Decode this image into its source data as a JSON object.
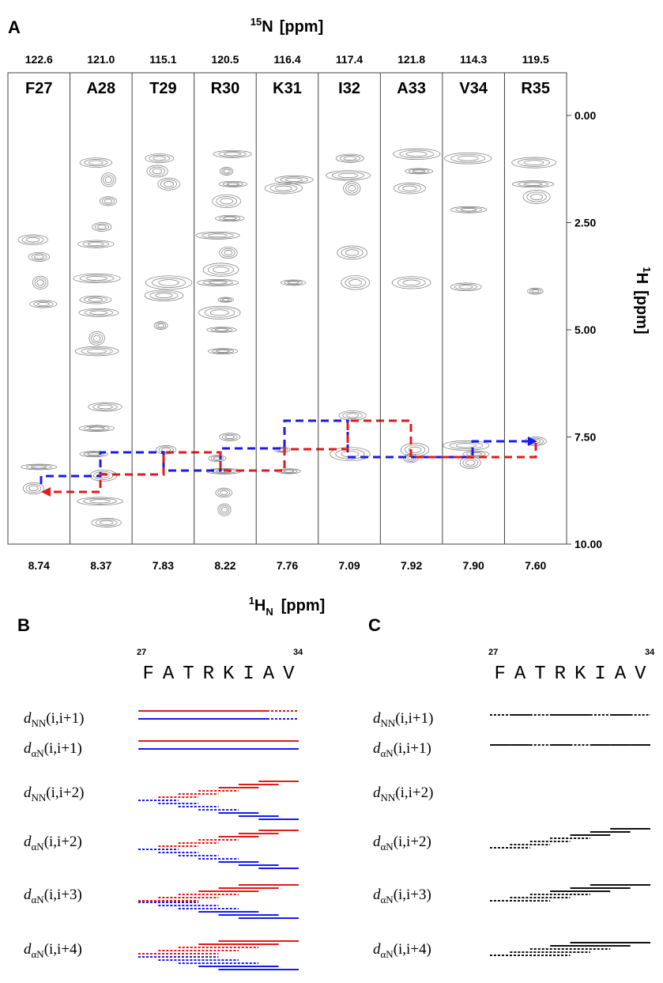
{
  "panel_a": {
    "label": "A",
    "top_axis_title": {
      "sup": "15",
      "text": "N",
      "unit": "[ppm]"
    },
    "strips": [
      {
        "n_ppm": "122.6",
        "residue": "F27",
        "h_ppm": "8.74"
      },
      {
        "n_ppm": "121.0",
        "residue": "A28",
        "h_ppm": "8.37"
      },
      {
        "n_ppm": "115.1",
        "residue": "T29",
        "h_ppm": "7.83"
      },
      {
        "n_ppm": "120.5",
        "residue": "R30",
        "h_ppm": "8.22"
      },
      {
        "n_ppm": "116.4",
        "residue": "K31",
        "h_ppm": "7.76"
      },
      {
        "n_ppm": "117.4",
        "residue": "I32",
        "h_ppm": "7.09"
      },
      {
        "n_ppm": "121.8",
        "residue": "A33",
        "h_ppm": "7.92"
      },
      {
        "n_ppm": "114.3",
        "residue": "V34",
        "h_ppm": "7.90"
      },
      {
        "n_ppm": "119.5",
        "residue": "R35",
        "h_ppm": "7.60"
      }
    ],
    "y_axis": {
      "title": {
        "sup": "1",
        "text": "H",
        "unit": "[ppm]"
      },
      "ticks": [
        {
          "value": 0,
          "label": "0.00"
        },
        {
          "value": 2.5,
          "label": "2.50"
        },
        {
          "value": 5,
          "label": "5.00"
        },
        {
          "value": 7.5,
          "label": "7.50"
        },
        {
          "value": 10,
          "label": "10.00"
        }
      ]
    },
    "bottom_axis_title": {
      "sup": "1",
      "text": "H",
      "sub": "N",
      "unit": "[ppm]"
    }
  },
  "panel_b": {
    "label": "B",
    "start": "27",
    "end": "34",
    "sequence": [
      "F",
      "A",
      "T",
      "R",
      "K",
      "I",
      "A",
      "V"
    ],
    "rows": [
      {
        "d": "d",
        "sub": "NN",
        "args": "(i,i+1)"
      },
      {
        "d": "d",
        "sub": "αN",
        "args": "(i,i+1)"
      },
      {
        "d": "d",
        "sub": "NN",
        "args": "(i,i+2)"
      },
      {
        "d": "d",
        "sub": "αN",
        "args": "(i,i+2)"
      },
      {
        "d": "d",
        "sub": "αN",
        "args": "(i,i+3)"
      },
      {
        "d": "d",
        "sub": "αN",
        "args": "(i,i+4)"
      }
    ]
  },
  "panel_c": {
    "label": "C",
    "start": "27",
    "end": "34",
    "sequence": [
      "F",
      "A",
      "T",
      "R",
      "K",
      "I",
      "A",
      "V"
    ],
    "rows": [
      {
        "d": "d",
        "sub": "NN",
        "args": "(i,i+1)"
      },
      {
        "d": "d",
        "sub": "αN",
        "args": "(i,i+1)"
      },
      {
        "d": "d",
        "sub": "NN",
        "args": "(i,i+2)"
      },
      {
        "d": "d",
        "sub": "αN",
        "args": "(i,i+2)"
      },
      {
        "d": "d",
        "sub": "αN",
        "args": "(i,i+3)"
      },
      {
        "d": "d",
        "sub": "αN",
        "args": "(i,i+4)"
      }
    ]
  }
}
